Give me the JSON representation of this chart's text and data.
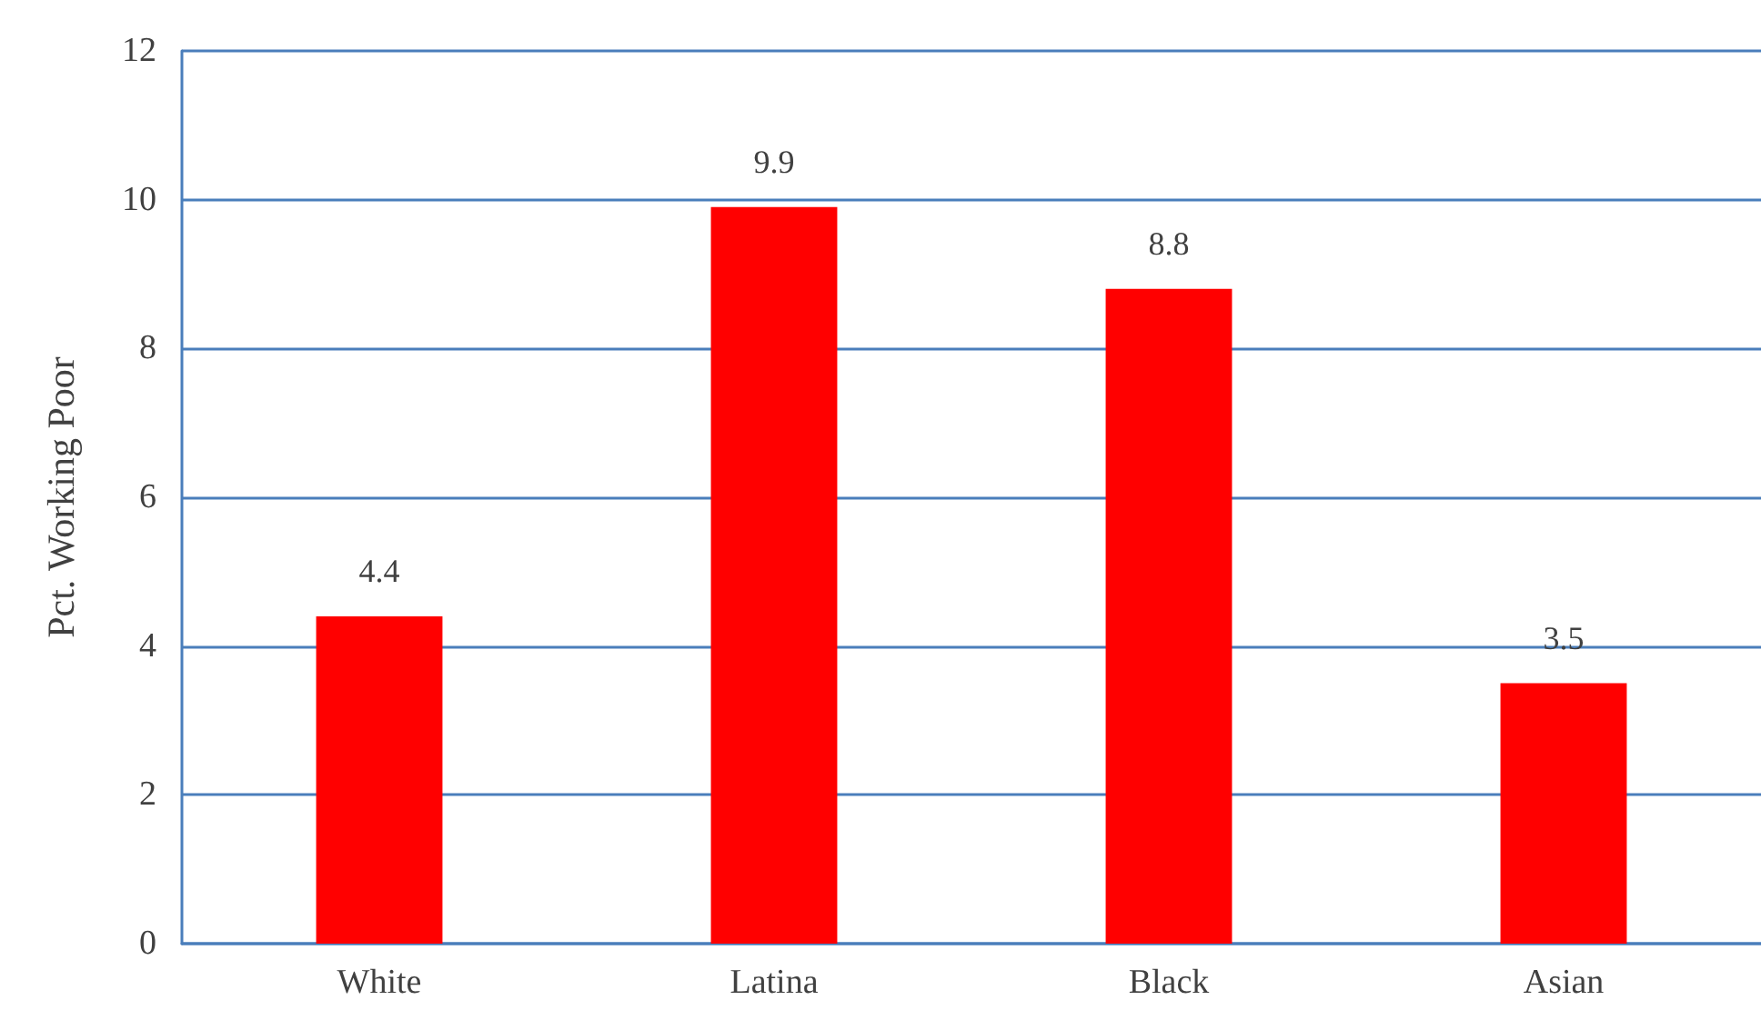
{
  "chart_data": {
    "type": "bar",
    "ylabel": "Pct. Working Poor",
    "categories": [
      "White",
      "Latina",
      "Black",
      "Asian"
    ],
    "values": [
      4.4,
      9.9,
      8.8,
      3.5
    ],
    "color": "#ff0000",
    "ylim": [
      0,
      12
    ],
    "yticks": [
      0,
      2,
      4,
      6,
      8,
      10,
      12
    ],
    "grid": "y",
    "data_labels": true
  }
}
